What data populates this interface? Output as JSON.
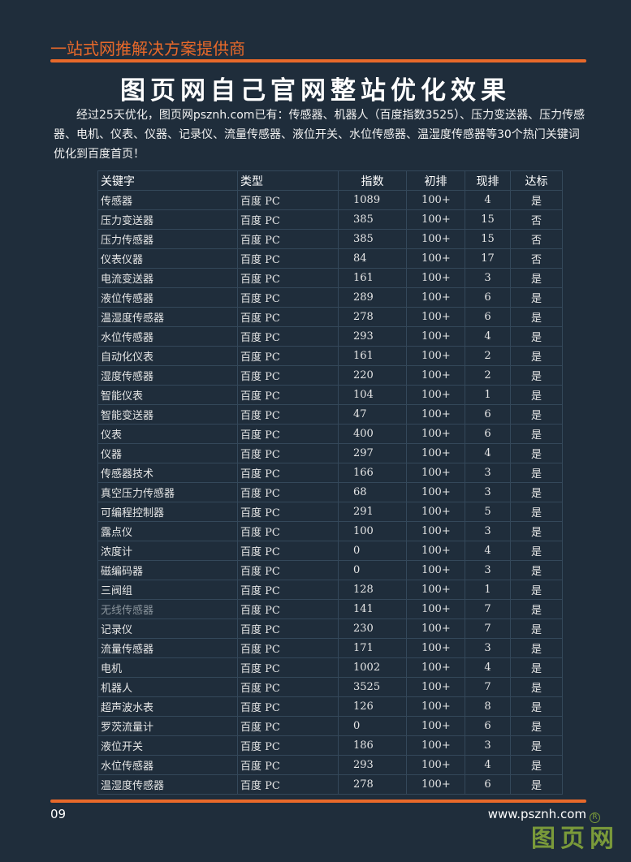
{
  "header": {
    "slogan": "一站式网推解决方案提供商",
    "title": "图页网自己官网整站优化效果",
    "intro": "经过25天优化，图页网psznh.com已有：传感器、机器人（百度指数3525）、压力变送器、压力传感器、电机、仪表、仪器、记录仪、流量传感器、液位开关、水位传感器、温湿度传感器等30个热门关键词优化到百度首页！"
  },
  "table": {
    "columns": [
      "关键字",
      "类型",
      "指数",
      "初排",
      "现排",
      "达标"
    ],
    "rows": [
      [
        "传感器",
        "百度 PC",
        "1089",
        "100+",
        "4",
        "是"
      ],
      [
        "压力变送器",
        "百度 PC",
        "385",
        "100+",
        "15",
        "否"
      ],
      [
        "压力传感器",
        "百度 PC",
        "385",
        "100+",
        "15",
        "否"
      ],
      [
        "仪表仪器",
        "百度 PC",
        "84",
        "100+",
        "17",
        "否"
      ],
      [
        "电流变送器",
        "百度 PC",
        "161",
        "100+",
        "3",
        "是"
      ],
      [
        "液位传感器",
        "百度 PC",
        "289",
        "100+",
        "6",
        "是"
      ],
      [
        "温湿度传感器",
        "百度 PC",
        "278",
        "100+",
        "6",
        "是"
      ],
      [
        "水位传感器",
        "百度 PC",
        "293",
        "100+",
        "4",
        "是"
      ],
      [
        "自动化仪表",
        "百度 PC",
        "161",
        "100+",
        "2",
        "是"
      ],
      [
        "湿度传感器",
        "百度 PC",
        "220",
        "100+",
        "2",
        "是"
      ],
      [
        "智能仪表",
        "百度 PC",
        "104",
        "100+",
        "1",
        "是"
      ],
      [
        "智能变送器",
        "百度 PC",
        "47",
        "100+",
        "6",
        "是"
      ],
      [
        "仪表",
        "百度 PC",
        "400",
        "100+",
        "6",
        "是"
      ],
      [
        "仪器",
        "百度 PC",
        "297",
        "100+",
        "4",
        "是"
      ],
      [
        "传感器技术",
        "百度 PC",
        "166",
        "100+",
        "3",
        "是"
      ],
      [
        "真空压力传感器",
        "百度 PC",
        "68",
        "100+",
        "3",
        "是"
      ],
      [
        "可编程控制器",
        "百度 PC",
        "291",
        "100+",
        "5",
        "是"
      ],
      [
        "露点仪",
        "百度 PC",
        "100",
        "100+",
        "3",
        "是"
      ],
      [
        "浓度计",
        "百度 PC",
        "0",
        "100+",
        "4",
        "是"
      ],
      [
        "磁编码器",
        "百度 PC",
        "0",
        "100+",
        "3",
        "是"
      ],
      [
        "三阀组",
        "百度 PC",
        "128",
        "100+",
        "1",
        "是"
      ],
      [
        "无线传感器",
        "百度 PC",
        "141",
        "100+",
        "7",
        "是"
      ],
      [
        "记录仪",
        "百度 PC",
        "230",
        "100+",
        "7",
        "是"
      ],
      [
        "流量传感器",
        "百度 PC",
        "171",
        "100+",
        "3",
        "是"
      ],
      [
        "电机",
        "百度 PC",
        "1002",
        "100+",
        "4",
        "是"
      ],
      [
        "机器人",
        "百度 PC",
        "3525",
        "100+",
        "7",
        "是"
      ],
      [
        "超声波水表",
        "百度 PC",
        "126",
        "100+",
        "8",
        "是"
      ],
      [
        "罗茨流量计",
        "百度 PC",
        "0",
        "100+",
        "6",
        "是"
      ],
      [
        "液位开关",
        "百度 PC",
        "186",
        "100+",
        "3",
        "是"
      ],
      [
        "水位传感器",
        "百度 PC",
        "293",
        "100+",
        "4",
        "是"
      ],
      [
        "温湿度传感器",
        "百度 PC",
        "278",
        "100+",
        "6",
        "是"
      ]
    ]
  },
  "footer": {
    "page": "09",
    "url": "www.psznh.com",
    "logo": "图页网",
    "reg": "R"
  },
  "colors": {
    "background": "#1f2d3b",
    "accent": "#e8692a",
    "logo": "#7a9a3a"
  }
}
